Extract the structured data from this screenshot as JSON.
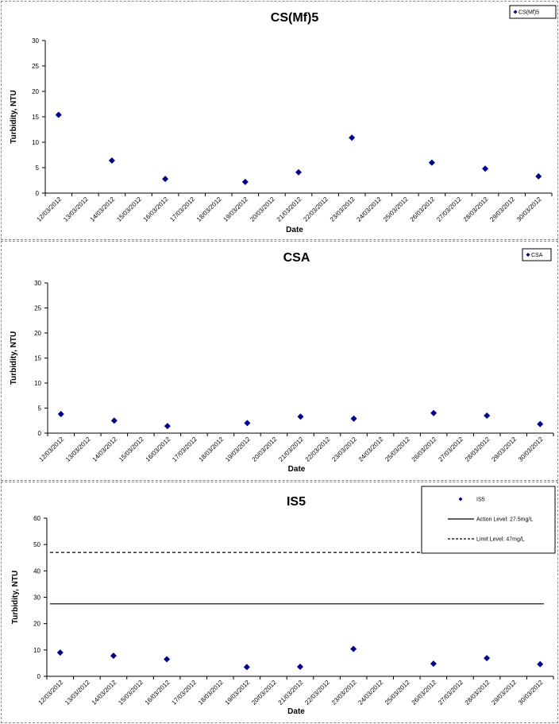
{
  "chart_data": [
    {
      "type": "scatter",
      "title": "CS(Mf)5",
      "xlabel": "Date",
      "ylabel": "Turbidity, NTU",
      "ylim": [
        0,
        30
      ],
      "yticks": [
        "0",
        "5",
        "10",
        "15",
        "20",
        "25",
        "30"
      ],
      "categories": [
        "12/03/2012",
        "13/03/2012",
        "14/03/2012",
        "15/03/2012",
        "16/03/2012",
        "17/03/2012",
        "18/03/2012",
        "19/03/2012",
        "20/03/2012",
        "21/03/2012",
        "22/03/2012",
        "23/03/2012",
        "24/03/2012",
        "25/03/2012",
        "26/03/2012",
        "27/03/2012",
        "28/03/2012",
        "29/03/2012",
        "30/03/2012"
      ],
      "legend_position": "top-right",
      "series": [
        {
          "name": "CS(Mf)5",
          "color": "#00008b",
          "marker": "diamond",
          "points": [
            {
              "x": "12/03/2012",
              "y": 15.4
            },
            {
              "x": "14/03/2012",
              "y": 6.4
            },
            {
              "x": "16/03/2012",
              "y": 2.8
            },
            {
              "x": "19/03/2012",
              "y": 2.2
            },
            {
              "x": "21/03/2012",
              "y": 4.1
            },
            {
              "x": "23/03/2012",
              "y": 10.9
            },
            {
              "x": "26/03/2012",
              "y": 6.0
            },
            {
              "x": "28/03/2012",
              "y": 4.8
            },
            {
              "x": "30/03/2012",
              "y": 3.3
            }
          ]
        }
      ]
    },
    {
      "type": "scatter",
      "title": "CSA",
      "xlabel": "Date",
      "ylabel": "Turbidity, NTU",
      "ylim": [
        0,
        30
      ],
      "yticks": [
        "0",
        "5",
        "10",
        "15",
        "20",
        "25",
        "30"
      ],
      "categories": [
        "12/03/2012",
        "13/03/2012",
        "14/03/2012",
        "15/03/2012",
        "16/03/2012",
        "17/03/2012",
        "18/03/2012",
        "19/03/2012",
        "20/03/2012",
        "21/03/2012",
        "22/03/2012",
        "23/03/2012",
        "24/03/2012",
        "25/03/2012",
        "26/03/2012",
        "27/03/2012",
        "28/03/2012",
        "29/03/2012",
        "30/03/2012"
      ],
      "legend_position": "top-right",
      "series": [
        {
          "name": "CSA",
          "color": "#00008b",
          "marker": "diamond",
          "points": [
            {
              "x": "12/03/2012",
              "y": 3.8
            },
            {
              "x": "14/03/2012",
              "y": 2.5
            },
            {
              "x": "16/03/2012",
              "y": 1.4
            },
            {
              "x": "19/03/2012",
              "y": 2.0
            },
            {
              "x": "21/03/2012",
              "y": 3.3
            },
            {
              "x": "23/03/2012",
              "y": 2.9
            },
            {
              "x": "26/03/2012",
              "y": 4.0
            },
            {
              "x": "28/03/2012",
              "y": 3.5
            },
            {
              "x": "30/03/2012",
              "y": 1.8
            }
          ]
        }
      ]
    },
    {
      "type": "scatter",
      "title": "IS5",
      "xlabel": "Date",
      "ylabel": "Turbidity, NTU",
      "ylim": [
        0,
        60
      ],
      "yticks": [
        "0",
        "10",
        "20",
        "30",
        "40",
        "50",
        "60"
      ],
      "categories": [
        "12/03/2012",
        "13/03/2012",
        "14/03/2012",
        "15/03/2012",
        "16/03/2012",
        "17/03/2012",
        "18/03/2012",
        "19/03/2012",
        "20/03/2012",
        "21/03/2012",
        "22/03/2012",
        "23/03/2012",
        "24/03/2012",
        "25/03/2012",
        "26/03/2012",
        "27/03/2012",
        "28/03/2012",
        "29/03/2012",
        "30/03/2012"
      ],
      "legend_position": "top-right",
      "series": [
        {
          "name": "IS5",
          "color": "#00008b",
          "marker": "diamond",
          "points": [
            {
              "x": "12/03/2012",
              "y": 9.0
            },
            {
              "x": "14/03/2012",
              "y": 7.8
            },
            {
              "x": "16/03/2012",
              "y": 6.5
            },
            {
              "x": "19/03/2012",
              "y": 3.5
            },
            {
              "x": "21/03/2012",
              "y": 3.6
            },
            {
              "x": "23/03/2012",
              "y": 10.4
            },
            {
              "x": "26/03/2012",
              "y": 4.8
            },
            {
              "x": "28/03/2012",
              "y": 6.9
            },
            {
              "x": "30/03/2012",
              "y": 4.6
            }
          ]
        }
      ],
      "reference_lines": [
        {
          "name": "Action Level: 27.5mg/L",
          "value": 27.5,
          "style": "solid",
          "color": "#000000"
        },
        {
          "name": "Limit Level: 47mg/L",
          "value": 47,
          "style": "dashed",
          "color": "#000000"
        }
      ]
    }
  ]
}
